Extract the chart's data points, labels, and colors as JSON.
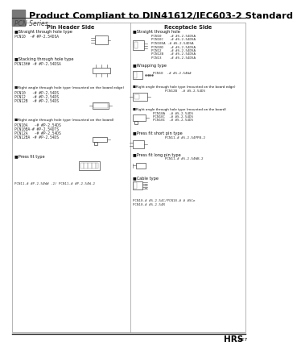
{
  "title": "Product Compliant to DIN41612/IEC603-2 Standard",
  "series": "PCN Series",
  "bg_color": "#ffffff",
  "header_bg": "#777777",
  "title_color": "#000000",
  "footer_text": "HRS",
  "footer_sub": "A27",
  "pin_header_title": "Pin Header Side",
  "receptacle_title": "Receptacle Side"
}
